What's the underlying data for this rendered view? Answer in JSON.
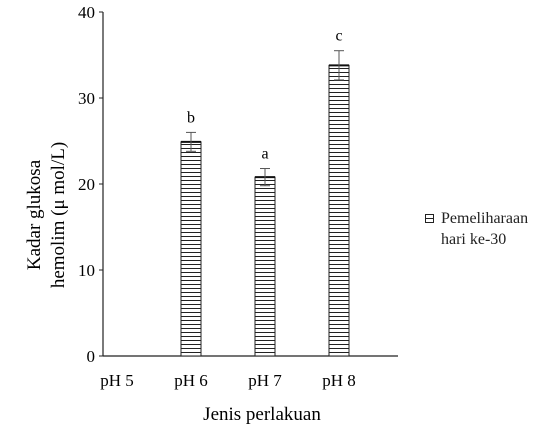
{
  "chart_data": {
    "type": "bar",
    "categories": [
      "pH 5",
      "pH 6",
      "pH 7",
      "pH 8"
    ],
    "series": [
      {
        "name": "Pemeliharaan hari ke-30",
        "values": [
          0,
          24.9,
          20.8,
          33.8
        ],
        "errors": [
          0,
          1.1,
          1.0,
          1.7
        ],
        "labels": [
          "",
          "b",
          "a",
          "c"
        ]
      }
    ],
    "xlabel": "Jenis perlakuan",
    "ylabel_lines": [
      "Kadar glukosa",
      "hemolim (μ mol/L)"
    ],
    "ylim": [
      0,
      40
    ],
    "yticks": [
      0,
      10,
      20,
      30,
      40
    ],
    "grid": false,
    "legend_position": "right",
    "pattern": "horizontal-stripes"
  },
  "legend": {
    "line1": "Pemeliharaan",
    "line2": "hari ke-30"
  }
}
